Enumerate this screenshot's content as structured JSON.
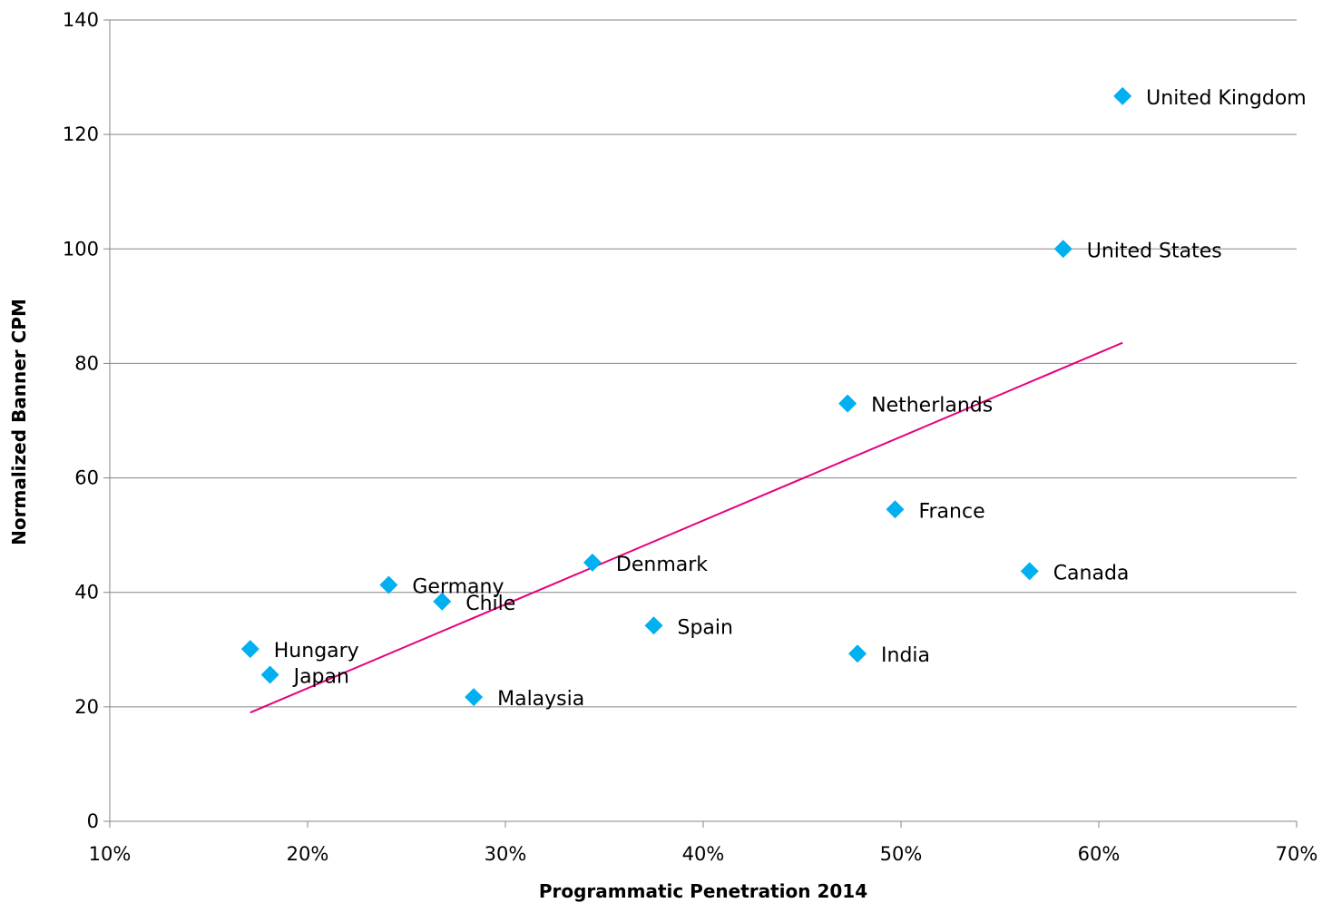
{
  "chart_data": {
    "type": "scatter",
    "title": "",
    "xlabel": "Programmatic Penetration 2014",
    "ylabel": "Normalized Banner CPM",
    "xlim": [
      0.1,
      0.7
    ],
    "ylim": [
      0,
      140
    ],
    "x_ticks": [
      0.1,
      0.2,
      0.3,
      0.4,
      0.5,
      0.6,
      0.7
    ],
    "x_tick_labels": [
      "10%",
      "20%",
      "30%",
      "40%",
      "50%",
      "60%",
      "70%"
    ],
    "y_ticks": [
      0,
      20,
      40,
      60,
      80,
      100,
      120,
      140
    ],
    "y_tick_labels": [
      "0",
      "20",
      "40",
      "60",
      "80",
      "100",
      "120",
      "140"
    ],
    "grid": "horizontal",
    "legend": "none",
    "colors": {
      "points": "#00b0f0",
      "trendline": "#e6007e",
      "grid": "#868686"
    },
    "points": [
      {
        "label": "United Kingdom",
        "x": 0.612,
        "y": 126.7
      },
      {
        "label": "United States",
        "x": 0.582,
        "y": 100.0
      },
      {
        "label": "Netherlands",
        "x": 0.473,
        "y": 73.0
      },
      {
        "label": "France",
        "x": 0.497,
        "y": 54.5
      },
      {
        "label": "Canada",
        "x": 0.565,
        "y": 43.7
      },
      {
        "label": "Denmark",
        "x": 0.344,
        "y": 45.2
      },
      {
        "label": "Germany",
        "x": 0.241,
        "y": 41.3
      },
      {
        "label": "Chile",
        "x": 0.268,
        "y": 38.4
      },
      {
        "label": "Spain",
        "x": 0.375,
        "y": 34.2
      },
      {
        "label": "India",
        "x": 0.478,
        "y": 29.3
      },
      {
        "label": "Hungary",
        "x": 0.171,
        "y": 30.1
      },
      {
        "label": "Japan",
        "x": 0.181,
        "y": 25.6
      },
      {
        "label": "Malaysia",
        "x": 0.284,
        "y": 21.7
      }
    ],
    "trendline": {
      "type": "linear",
      "x": [
        0.171,
        0.612
      ],
      "y": [
        19.0,
        83.6
      ]
    }
  }
}
